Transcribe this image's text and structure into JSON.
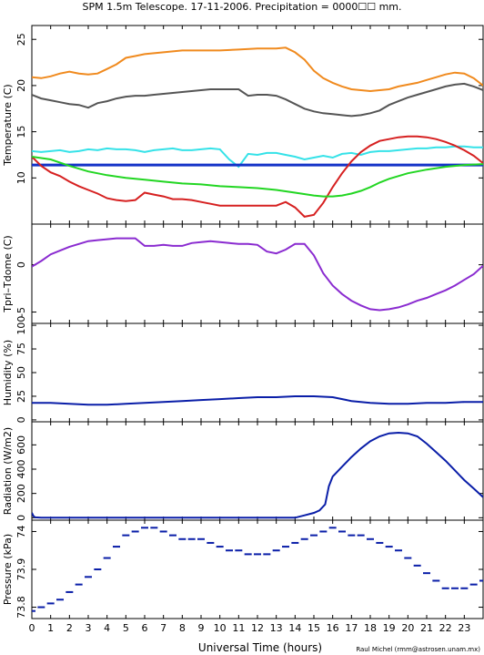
{
  "title": "SPM 1.5m Telescope. 17-11-2006. Precipitation = 0000☐☐ mm.",
  "xlabel": "Universal Time (hours)",
  "credit": "Raul Michel (rmm@astrosen.unam.mx)",
  "colors": {
    "axes": "#000000",
    "orange": "#f08a1e",
    "gray": "#555555",
    "cyan": "#35e2e8",
    "blue_line": "#1433c8",
    "red": "#d62020",
    "green": "#22d622",
    "purple": "#8a2bd0",
    "navy": "#0a1ea8"
  },
  "chart_data": [
    {
      "id": "temperature",
      "type": "line",
      "ylabel": "Temperature (C)",
      "ylim": [
        5,
        26.5
      ],
      "yticks": [
        10,
        15,
        20,
        25
      ],
      "xlim": [
        0,
        24
      ],
      "xticks": [
        0,
        1,
        2,
        3,
        4,
        5,
        6,
        7,
        8,
        9,
        10,
        11,
        12,
        13,
        14,
        15,
        16,
        17,
        18,
        19,
        20,
        21,
        22,
        23
      ],
      "series": [
        {
          "color_key": "orange",
          "x": [
            0,
            0.5,
            1,
            1.5,
            2,
            2.5,
            3,
            3.5,
            4,
            4.5,
            5,
            5.5,
            6,
            6.5,
            7,
            8,
            9,
            10,
            11,
            12,
            13,
            13.5,
            14,
            14.5,
            15,
            15.5,
            16,
            16.5,
            17,
            17.5,
            18,
            18.5,
            19,
            19.5,
            20,
            20.5,
            21,
            21.5,
            22,
            22.5,
            23,
            23.5,
            24
          ],
          "y": [
            20.9,
            20.8,
            21.0,
            21.3,
            21.5,
            21.3,
            21.2,
            21.3,
            21.8,
            22.3,
            23.0,
            23.2,
            23.4,
            23.5,
            23.6,
            23.8,
            23.8,
            23.8,
            23.9,
            24.0,
            24.0,
            24.1,
            23.6,
            22.8,
            21.6,
            20.8,
            20.3,
            19.9,
            19.6,
            19.5,
            19.4,
            19.5,
            19.6,
            19.9,
            20.1,
            20.3,
            20.6,
            20.9,
            21.2,
            21.4,
            21.3,
            20.8,
            20.0
          ]
        },
        {
          "color_key": "gray",
          "x": [
            0,
            0.5,
            1,
            1.5,
            2,
            2.5,
            3,
            3.5,
            4,
            4.5,
            5,
            5.5,
            6,
            6.5,
            7,
            7.5,
            8,
            8.5,
            9,
            9.5,
            10,
            10.5,
            11,
            11.5,
            12,
            12.5,
            13,
            13.5,
            14,
            14.5,
            15,
            15.5,
            16,
            16.5,
            17,
            17.5,
            18,
            18.5,
            19,
            19.5,
            20,
            20.5,
            21,
            21.5,
            22,
            22.5,
            23,
            23.5,
            24
          ],
          "y": [
            19.0,
            18.6,
            18.4,
            18.2,
            18.0,
            17.9,
            17.6,
            18.1,
            18.3,
            18.6,
            18.8,
            18.9,
            18.9,
            19.0,
            19.1,
            19.2,
            19.3,
            19.4,
            19.5,
            19.6,
            19.6,
            19.6,
            19.6,
            18.9,
            19.0,
            19.0,
            18.9,
            18.5,
            18.0,
            17.5,
            17.2,
            17.0,
            16.9,
            16.8,
            16.7,
            16.8,
            17.0,
            17.3,
            17.9,
            18.3,
            18.7,
            19.0,
            19.3,
            19.6,
            19.9,
            20.1,
            20.2,
            19.9,
            19.5
          ]
        },
        {
          "color_key": "cyan",
          "x": [
            0,
            0.5,
            1,
            1.5,
            2,
            2.5,
            3,
            3.5,
            4,
            4.5,
            5,
            5.5,
            6,
            6.5,
            7,
            7.5,
            8,
            8.5,
            9,
            9.5,
            10,
            10.5,
            11,
            11.5,
            12,
            12.5,
            13,
            13.5,
            14,
            14.5,
            15,
            15.5,
            16,
            16.5,
            17,
            17.5,
            18,
            18.5,
            19,
            19.5,
            20,
            20.5,
            21,
            21.5,
            22,
            22.5,
            23,
            23.5,
            24
          ],
          "y": [
            12.9,
            12.8,
            12.9,
            13.0,
            12.8,
            12.9,
            13.1,
            13.0,
            13.2,
            13.1,
            13.1,
            13.0,
            12.8,
            13.0,
            13.1,
            13.2,
            13.0,
            13.0,
            13.1,
            13.2,
            13.1,
            12.0,
            11.2,
            12.6,
            12.5,
            12.7,
            12.7,
            12.5,
            12.3,
            12.0,
            12.2,
            12.4,
            12.2,
            12.6,
            12.7,
            12.5,
            12.8,
            12.9,
            12.9,
            13.0,
            13.1,
            13.2,
            13.2,
            13.3,
            13.3,
            13.4,
            13.4,
            13.3,
            13.3
          ]
        },
        {
          "color_key": "blue_line",
          "x": [
            0,
            24
          ],
          "y": [
            11.4,
            11.4
          ]
        },
        {
          "color_key": "red",
          "x": [
            0,
            0.5,
            1,
            1.5,
            2,
            2.5,
            3,
            3.5,
            4,
            4.5,
            5,
            5.5,
            6,
            6.5,
            7,
            7.5,
            8,
            8.5,
            9,
            9.5,
            10,
            10.5,
            11,
            11.5,
            12,
            12.5,
            13,
            13.5,
            14,
            14.5,
            15,
            15.5,
            16,
            16.5,
            17,
            17.5,
            18,
            18.5,
            19,
            19.5,
            20,
            20.5,
            21,
            21.5,
            22,
            22.5,
            23,
            23.5,
            24
          ],
          "y": [
            12.3,
            11.3,
            10.6,
            10.2,
            9.6,
            9.1,
            8.7,
            8.3,
            7.8,
            7.6,
            7.5,
            7.6,
            8.4,
            8.2,
            8.0,
            7.7,
            7.7,
            7.6,
            7.4,
            7.2,
            7.0,
            7.0,
            7.0,
            7.0,
            7.0,
            7.0,
            7.0,
            7.4,
            6.8,
            5.8,
            6.0,
            7.3,
            9.0,
            10.5,
            11.8,
            12.8,
            13.5,
            14.0,
            14.2,
            14.4,
            14.5,
            14.5,
            14.4,
            14.2,
            13.9,
            13.5,
            13.0,
            12.4,
            11.6
          ]
        },
        {
          "color_key": "green",
          "x": [
            0,
            1,
            2,
            3,
            4,
            5,
            6,
            7,
            8,
            9,
            10,
            11,
            12,
            13,
            14,
            15,
            15.5,
            16,
            16.5,
            17,
            17.5,
            18,
            18.5,
            19,
            20,
            21,
            22,
            23,
            24
          ],
          "y": [
            12.3,
            12.0,
            11.3,
            10.7,
            10.3,
            10.0,
            9.8,
            9.6,
            9.4,
            9.3,
            9.1,
            9.0,
            8.9,
            8.7,
            8.4,
            8.1,
            8.0,
            8.0,
            8.1,
            8.3,
            8.6,
            9.0,
            9.5,
            9.9,
            10.5,
            10.9,
            11.2,
            11.4,
            11.5
          ]
        }
      ]
    },
    {
      "id": "tpri_tdome",
      "type": "line",
      "ylabel": "Tpri–Tdome (C)",
      "ylim": [
        -6.2,
        4.3
      ],
      "yticks": [
        -5,
        0
      ],
      "series": [
        {
          "color_key": "purple",
          "x": [
            0,
            0.5,
            1,
            1.5,
            2,
            2.5,
            3,
            3.5,
            4,
            4.5,
            5,
            5.5,
            6,
            6.5,
            7,
            7.5,
            8,
            8.5,
            9,
            9.5,
            10,
            10.5,
            11,
            11.5,
            12,
            12.5,
            13,
            13.5,
            14,
            14.5,
            15,
            15.5,
            16,
            16.5,
            17,
            17.5,
            18,
            18.5,
            19,
            19.5,
            20,
            20.5,
            21,
            21.5,
            22,
            22.5,
            23,
            23.5,
            24
          ],
          "y": [
            -0.2,
            0.4,
            1.1,
            1.5,
            1.9,
            2.2,
            2.5,
            2.6,
            2.7,
            2.8,
            2.8,
            2.8,
            2.0,
            2.0,
            2.1,
            2.0,
            2.0,
            2.3,
            2.4,
            2.5,
            2.4,
            2.3,
            2.2,
            2.2,
            2.1,
            1.4,
            1.2,
            1.6,
            2.2,
            2.2,
            1.0,
            -0.9,
            -2.2,
            -3.1,
            -3.8,
            -4.3,
            -4.7,
            -4.8,
            -4.7,
            -4.5,
            -4.2,
            -3.8,
            -3.5,
            -3.1,
            -2.7,
            -2.2,
            -1.6,
            -1.0,
            -0.1
          ]
        }
      ]
    },
    {
      "id": "humidity",
      "type": "line",
      "ylabel": "Humidity (%)",
      "ylim": [
        -2,
        102
      ],
      "yticks": [
        0,
        25,
        50,
        75,
        100
      ],
      "series": [
        {
          "color_key": "navy",
          "x": [
            0,
            1,
            2,
            3,
            4,
            5,
            6,
            7,
            8,
            9,
            10,
            11,
            12,
            13,
            14,
            15,
            16,
            17,
            18,
            19,
            20,
            21,
            22,
            23,
            24
          ],
          "y": [
            18,
            18,
            17,
            16,
            16,
            17,
            18,
            19,
            20,
            21,
            22,
            23,
            24,
            24,
            25,
            25,
            24,
            20,
            18,
            17,
            17,
            18,
            18,
            19,
            19
          ]
        }
      ]
    },
    {
      "id": "radiation",
      "type": "line",
      "ylabel": "Radiation (W/m2)",
      "ylim": [
        -20,
        790
      ],
      "yticks": [
        0,
        200,
        400,
        600
      ],
      "series": [
        {
          "color_key": "navy",
          "x": [
            0,
            0.1,
            0.2,
            0.5,
            1,
            2,
            3,
            4,
            5,
            6,
            7,
            8,
            9,
            10,
            11,
            12,
            13,
            14,
            14.5,
            15,
            15.3,
            15.6,
            15.8,
            16,
            16.5,
            17,
            17.5,
            18,
            18.5,
            19,
            19.5,
            20,
            20.5,
            21,
            21.5,
            22,
            22.5,
            23,
            23.5,
            24
          ],
          "y": [
            40,
            10,
            3,
            0,
            0,
            0,
            0,
            0,
            0,
            0,
            0,
            0,
            0,
            0,
            0,
            0,
            0,
            0,
            20,
            40,
            60,
            110,
            260,
            340,
            420,
            500,
            570,
            630,
            670,
            695,
            700,
            695,
            670,
            610,
            540,
            470,
            390,
            310,
            240,
            170
          ]
        }
      ]
    },
    {
      "id": "pressure",
      "type": "scatter",
      "ylabel": "Pressure (kPa)",
      "ylim": [
        73.77,
        74.03
      ],
      "yticks": [
        73.8,
        73.9,
        74
      ],
      "series": [
        {
          "color_key": "navy",
          "x": [
            0,
            0.5,
            1,
            1.5,
            2,
            2.5,
            3,
            3.5,
            4,
            4.5,
            5,
            5.5,
            6,
            6.5,
            7,
            7.5,
            8,
            8.5,
            9,
            9.5,
            10,
            10.5,
            11,
            11.5,
            12,
            12.5,
            13,
            13.5,
            14,
            14.5,
            15,
            15.5,
            16,
            16.5,
            17,
            17.5,
            18,
            18.5,
            19,
            19.5,
            20,
            20.5,
            21,
            21.5,
            22,
            22.5,
            23,
            23.5,
            24
          ],
          "y": [
            73.79,
            73.8,
            73.81,
            73.82,
            73.84,
            73.86,
            73.88,
            73.9,
            73.93,
            73.96,
            73.99,
            74.0,
            74.01,
            74.01,
            74.0,
            73.99,
            73.98,
            73.98,
            73.98,
            73.97,
            73.96,
            73.95,
            73.95,
            73.94,
            73.94,
            73.94,
            73.95,
            73.96,
            73.97,
            73.98,
            73.99,
            74.0,
            74.01,
            74.0,
            73.99,
            73.99,
            73.98,
            73.97,
            73.96,
            73.95,
            73.93,
            73.91,
            73.89,
            73.87,
            73.85,
            73.85,
            73.85,
            73.86,
            73.87
          ]
        }
      ]
    }
  ]
}
